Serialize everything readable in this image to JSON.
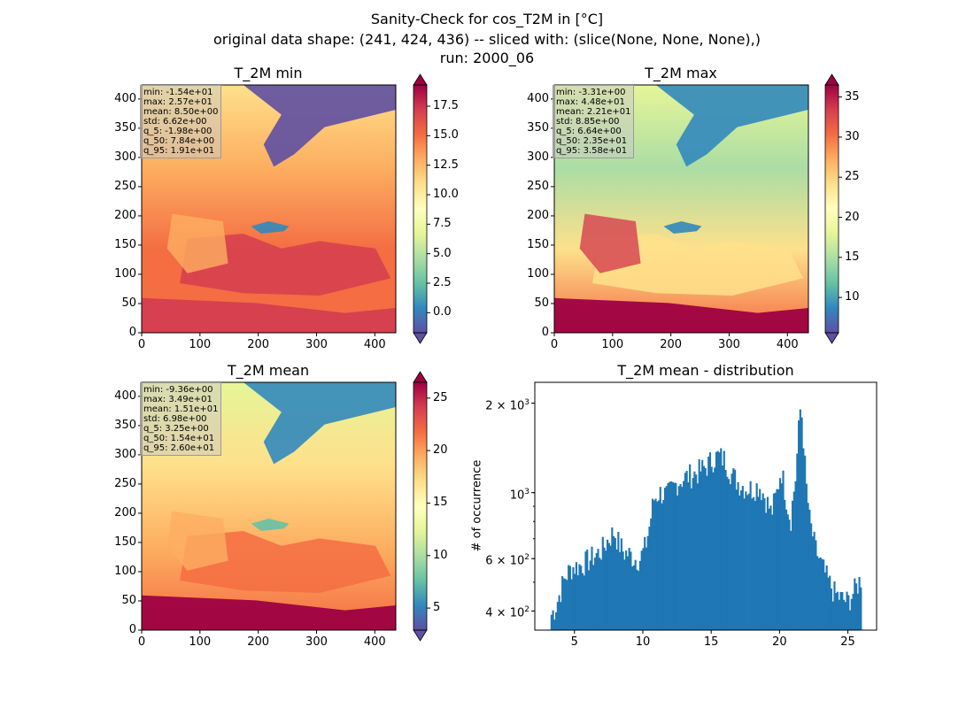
{
  "suptitle": {
    "line1": "Sanity-Check for cos_T2M in [°C]",
    "line2": "original data shape: (241, 424, 436) -- sliced with: (slice(None, None, None),)",
    "line3": "run: 2000_06"
  },
  "chart_data": [
    {
      "type": "heatmap",
      "title": "T_2M min",
      "x_ticks": [
        "0",
        "100",
        "200",
        "300",
        "400"
      ],
      "y_ticks": [
        "0",
        "50",
        "100",
        "150",
        "200",
        "250",
        "300",
        "350",
        "400"
      ],
      "xlim": [
        0,
        436
      ],
      "ylim": [
        0,
        424
      ],
      "colormap": "Spectral_r",
      "colorbar": {
        "vmin": -1.7,
        "vmax": 19.3,
        "extend": "both",
        "ticks": [
          "0.0",
          "2.5",
          "5.0",
          "7.5",
          "10.0",
          "12.5",
          "15.0",
          "17.5"
        ],
        "tick_values": [
          0,
          2.5,
          5,
          7.5,
          10,
          12.5,
          15,
          17.5
        ]
      },
      "stats": [
        "min: -1.54e+01",
        "max: 2.57e+01",
        "mean: 8.50e+00",
        "std: 6.62e+00",
        "q_5: -1.98e+00",
        "q_50: 7.84e+00",
        "q_95: 1.91e+01"
      ]
    },
    {
      "type": "heatmap",
      "title": "T_2M max",
      "x_ticks": [
        "0",
        "100",
        "200",
        "300",
        "400"
      ],
      "y_ticks": [
        "0",
        "50",
        "100",
        "150",
        "200",
        "250",
        "300",
        "350",
        "400"
      ],
      "xlim": [
        0,
        436
      ],
      "ylim": [
        0,
        424
      ],
      "colormap": "Spectral_r",
      "colorbar": {
        "vmin": 5.6,
        "vmax": 36.5,
        "extend": "both",
        "ticks": [
          "10",
          "15",
          "20",
          "25",
          "30",
          "35"
        ],
        "tick_values": [
          10,
          15,
          20,
          25,
          30,
          35
        ]
      },
      "stats": [
        "min: -3.31e+00",
        "max: 4.48e+01",
        "mean: 2.21e+01",
        "std: 8.85e+00",
        "q_5: 6.64e+00",
        "q_50: 2.35e+01",
        "q_95: 3.58e+01"
      ]
    },
    {
      "type": "heatmap",
      "title": "T_2M mean",
      "x_ticks": [
        "0",
        "100",
        "200",
        "300",
        "400"
      ],
      "y_ticks": [
        "0",
        "50",
        "100",
        "150",
        "200",
        "250",
        "300",
        "350",
        "400"
      ],
      "xlim": [
        0,
        436
      ],
      "ylim": [
        0,
        424
      ],
      "colormap": "Spectral_r",
      "colorbar": {
        "vmin": 2.9,
        "vmax": 26.5,
        "extend": "both",
        "ticks": [
          "5",
          "10",
          "15",
          "20",
          "25"
        ],
        "tick_values": [
          5,
          10,
          15,
          20,
          25
        ]
      },
      "stats": [
        "min: -9.36e+00",
        "max: 3.49e+01",
        "mean: 1.51e+01",
        "std: 6.98e+00",
        "q_5: 3.25e+00",
        "q_50: 1.54e+01",
        "q_95: 2.60e+01"
      ]
    },
    {
      "type": "bar",
      "title": "T_2M mean - distribution",
      "xlabel": "",
      "ylabel": "# of occurrence",
      "y_scale": "log",
      "xlim": [
        2.1,
        27.1
      ],
      "ylim": [
        345,
        2350
      ],
      "x_ticks": [
        "5",
        "10",
        "15",
        "20",
        "25"
      ],
      "x_tick_values": [
        5,
        10,
        15,
        20,
        25
      ],
      "y_ticks": [
        {
          "value": 400,
          "mantissa": "4",
          "exp": "2"
        },
        {
          "value": 600,
          "mantissa": "6",
          "exp": "2"
        },
        {
          "value": 1000,
          "mantissa": "",
          "exp": "3"
        },
        {
          "value": 2000,
          "mantissa": "2",
          "exp": "3"
        }
      ],
      "color": "#1f77b4",
      "bin_range": [
        3.25,
        26.0
      ],
      "bin_count": 200,
      "profile": [
        [
          3.25,
          385
        ],
        [
          3.6,
          410
        ],
        [
          4.0,
          470
        ],
        [
          4.3,
          520
        ],
        [
          4.8,
          560
        ],
        [
          5.5,
          570
        ],
        [
          6.2,
          600
        ],
        [
          7.0,
          640
        ],
        [
          7.5,
          700
        ],
        [
          7.9,
          740
        ],
        [
          8.2,
          680
        ],
        [
          8.6,
          630
        ],
        [
          9.0,
          620
        ],
        [
          9.4,
          600
        ],
        [
          9.8,
          600
        ],
        [
          10.2,
          660
        ],
        [
          10.5,
          780
        ],
        [
          10.8,
          950
        ],
        [
          11.2,
          1000
        ],
        [
          11.8,
          980
        ],
        [
          12.5,
          1080
        ],
        [
          13.0,
          1120
        ],
        [
          13.6,
          1150
        ],
        [
          14.0,
          1170
        ],
        [
          14.6,
          1220
        ],
        [
          15.0,
          1280
        ],
        [
          15.5,
          1330
        ],
        [
          16.0,
          1290
        ],
        [
          16.5,
          1150
        ],
        [
          17.0,
          1080
        ],
        [
          17.5,
          1040
        ],
        [
          18.0,
          1030
        ],
        [
          18.5,
          1060
        ],
        [
          19.0,
          950
        ],
        [
          19.4,
          850
        ],
        [
          19.8,
          1000
        ],
        [
          20.1,
          1200
        ],
        [
          20.5,
          950
        ],
        [
          20.8,
          800
        ],
        [
          21.2,
          1150
        ],
        [
          21.55,
          2000
        ],
        [
          21.9,
          1100
        ],
        [
          22.2,
          800
        ],
        [
          22.6,
          650
        ],
        [
          23.0,
          580
        ],
        [
          23.5,
          510
        ],
        [
          24.0,
          460
        ],
        [
          24.5,
          440
        ],
        [
          25.0,
          430
        ],
        [
          25.5,
          470
        ],
        [
          26.0,
          520
        ]
      ]
    }
  ]
}
